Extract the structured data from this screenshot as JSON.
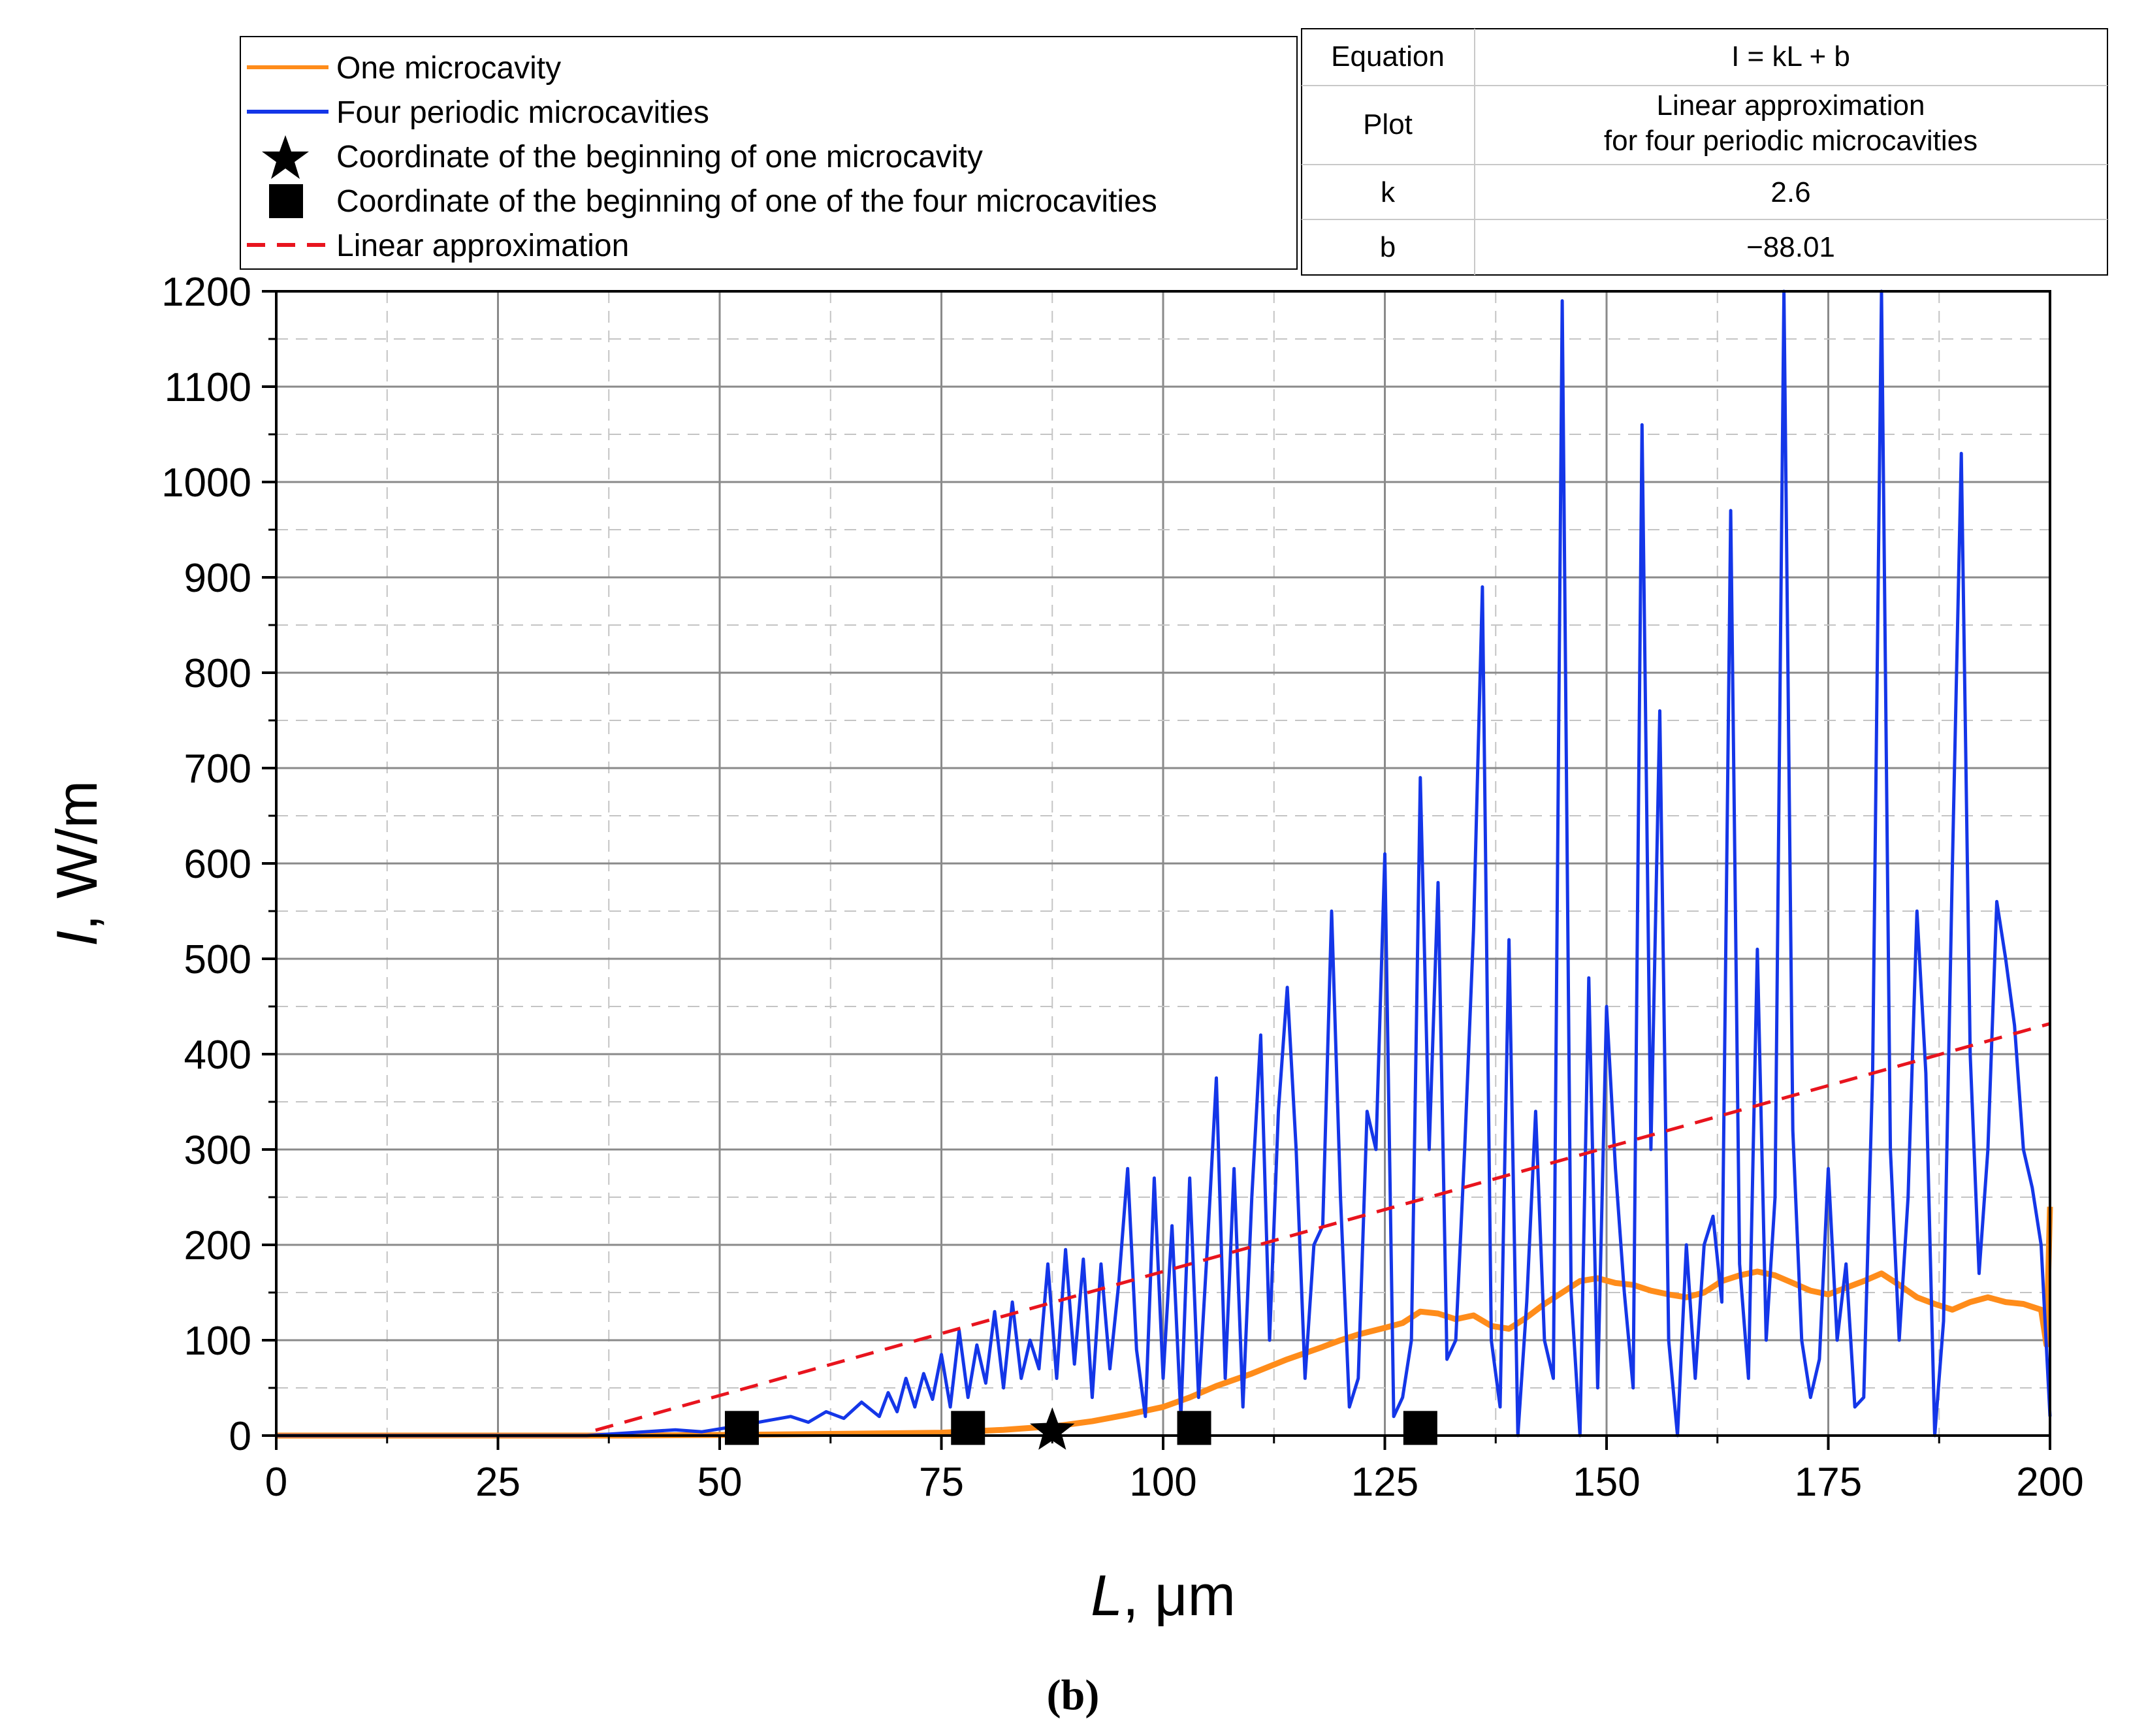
{
  "chart_data": {
    "type": "line",
    "xlabel_var": "L",
    "xlabel_unit": ", μm",
    "ylabel_var": "I",
    "ylabel_unit": ", W/m",
    "xlim": [
      0,
      200
    ],
    "ylim": [
      0,
      1200
    ],
    "x_ticks": [
      "0",
      "25",
      "50",
      "75",
      "100",
      "125",
      "150",
      "175",
      "200"
    ],
    "y_ticks": [
      "0",
      "100",
      "200",
      "300",
      "400",
      "500",
      "600",
      "700",
      "800",
      "900",
      "1000",
      "1100",
      "1200"
    ],
    "grid": true,
    "caption": "(b)",
    "legend": [
      {
        "label": "One microcavity",
        "kind": "line",
        "color": "#ff8c1a"
      },
      {
        "label": "Four periodic microcavities",
        "kind": "line",
        "color": "#1436e8"
      },
      {
        "label": "Coordinate of the beginning of one microcavity",
        "kind": "star",
        "color": "#000000"
      },
      {
        "label": "Coordinate of the beginning of one of the four microcavities",
        "kind": "square",
        "color": "#000000"
      },
      {
        "label": "Linear approximation",
        "kind": "dashed",
        "color": "#e8141e"
      }
    ],
    "fit_table": [
      {
        "key": "Equation",
        "value": "I = kL + b"
      },
      {
        "key": "Plot",
        "value": "Linear approximation",
        "value2": "for four periodic microcavities"
      },
      {
        "key": "k",
        "value": "2.6"
      },
      {
        "key": "b",
        "value": "−88.01"
      }
    ],
    "series": [
      {
        "name": "One microcavity",
        "color": "#ff8c1a",
        "x": [
          0,
          40,
          55,
          65,
          75,
          82,
          88,
          92,
          96,
          100,
          103,
          106,
          110,
          114,
          118,
          120,
          122,
          125,
          127,
          129,
          131,
          133,
          135,
          137,
          139,
          141,
          143,
          145,
          147,
          149,
          151,
          153,
          155,
          157,
          159,
          161,
          163,
          165,
          167,
          169,
          171,
          173,
          175,
          177,
          179,
          181,
          183,
          185,
          187,
          189,
          191,
          193,
          195,
          197,
          199,
          199.6,
          200
        ],
        "y": [
          0,
          0,
          1,
          2,
          3,
          6,
          10,
          15,
          22,
          30,
          40,
          52,
          65,
          80,
          93,
          100,
          106,
          113,
          118,
          130,
          128,
          122,
          126,
          115,
          112,
          124,
          138,
          150,
          162,
          165,
          160,
          158,
          152,
          148,
          145,
          150,
          162,
          168,
          172,
          168,
          160,
          152,
          148,
          155,
          162,
          170,
          158,
          145,
          138,
          132,
          140,
          145,
          140,
          138,
          132,
          95,
          240
        ]
      },
      {
        "name": "Four periodic microcavities",
        "color": "#1436e8",
        "x": [
          0,
          35,
          40,
          45,
          48,
          52,
          55,
          58,
          60,
          62,
          64,
          66,
          68,
          69,
          70,
          71,
          72,
          73,
          74,
          75,
          76,
          77,
          78,
          79,
          80,
          81,
          82,
          83,
          84,
          85,
          86,
          87,
          88,
          89,
          90,
          91,
          92,
          93,
          94,
          95,
          96,
          97,
          98,
          99,
          100,
          101,
          102,
          103,
          104,
          105,
          106,
          107,
          108,
          109,
          110,
          111,
          112,
          113,
          114,
          115,
          116,
          117,
          118,
          119,
          120,
          121,
          122,
          123,
          124,
          125,
          126,
          127,
          128,
          129,
          130,
          131,
          132,
          133,
          134,
          135,
          136,
          137,
          138,
          139,
          140,
          141,
          142,
          143,
          144,
          145,
          146,
          147,
          148,
          149,
          150,
          151,
          152,
          153,
          154,
          155,
          156,
          157,
          158,
          159,
          160,
          161,
          162,
          163,
          164,
          165,
          166,
          167,
          168,
          169,
          170,
          171,
          172,
          173,
          174,
          175,
          176,
          177,
          178,
          179,
          180,
          181,
          182,
          183,
          184,
          185,
          186,
          187,
          188,
          189,
          190,
          191,
          192,
          193,
          194,
          195,
          196,
          197,
          198,
          199,
          200
        ],
        "y": [
          0,
          0,
          3,
          6,
          4,
          10,
          15,
          20,
          14,
          25,
          18,
          35,
          20,
          45,
          25,
          60,
          30,
          65,
          38,
          85,
          30,
          110,
          40,
          95,
          55,
          130,
          50,
          140,
          60,
          100,
          70,
          180,
          60,
          195,
          75,
          185,
          40,
          180,
          70,
          160,
          280,
          90,
          20,
          270,
          60,
          220,
          20,
          270,
          40,
          200,
          375,
          60,
          280,
          30,
          250,
          420,
          100,
          340,
          470,
          300,
          60,
          200,
          220,
          550,
          250,
          30,
          60,
          340,
          300,
          610,
          20,
          40,
          100,
          690,
          300,
          580,
          80,
          100,
          300,
          530,
          890,
          100,
          30,
          520,
          0,
          140,
          340,
          100,
          60,
          1190,
          150,
          0,
          480,
          50,
          450,
          280,
          150,
          50,
          1060,
          300,
          760,
          100,
          0,
          200,
          60,
          200,
          230,
          140,
          970,
          180,
          60,
          510,
          100,
          250,
          1200,
          320,
          100,
          40,
          80,
          280,
          100,
          180,
          30,
          40,
          380,
          1200,
          300,
          100,
          250,
          550,
          380,
          0,
          120,
          600,
          1030,
          400,
          170,
          300,
          560,
          500,
          430,
          300,
          260,
          200,
          20
        ]
      },
      {
        "name": "Linear approximation",
        "color": "#e8141e",
        "x": [
          36,
          200
        ],
        "y": [
          5.59,
          431.99
        ]
      }
    ],
    "markers_four": [
      {
        "x": 52.5,
        "y": 8
      },
      {
        "x": 78,
        "y": 8
      },
      {
        "x": 103.5,
        "y": 8
      },
      {
        "x": 129,
        "y": 8
      }
    ],
    "markers_one": [
      {
        "x": 87.5,
        "y": 5
      }
    ]
  }
}
